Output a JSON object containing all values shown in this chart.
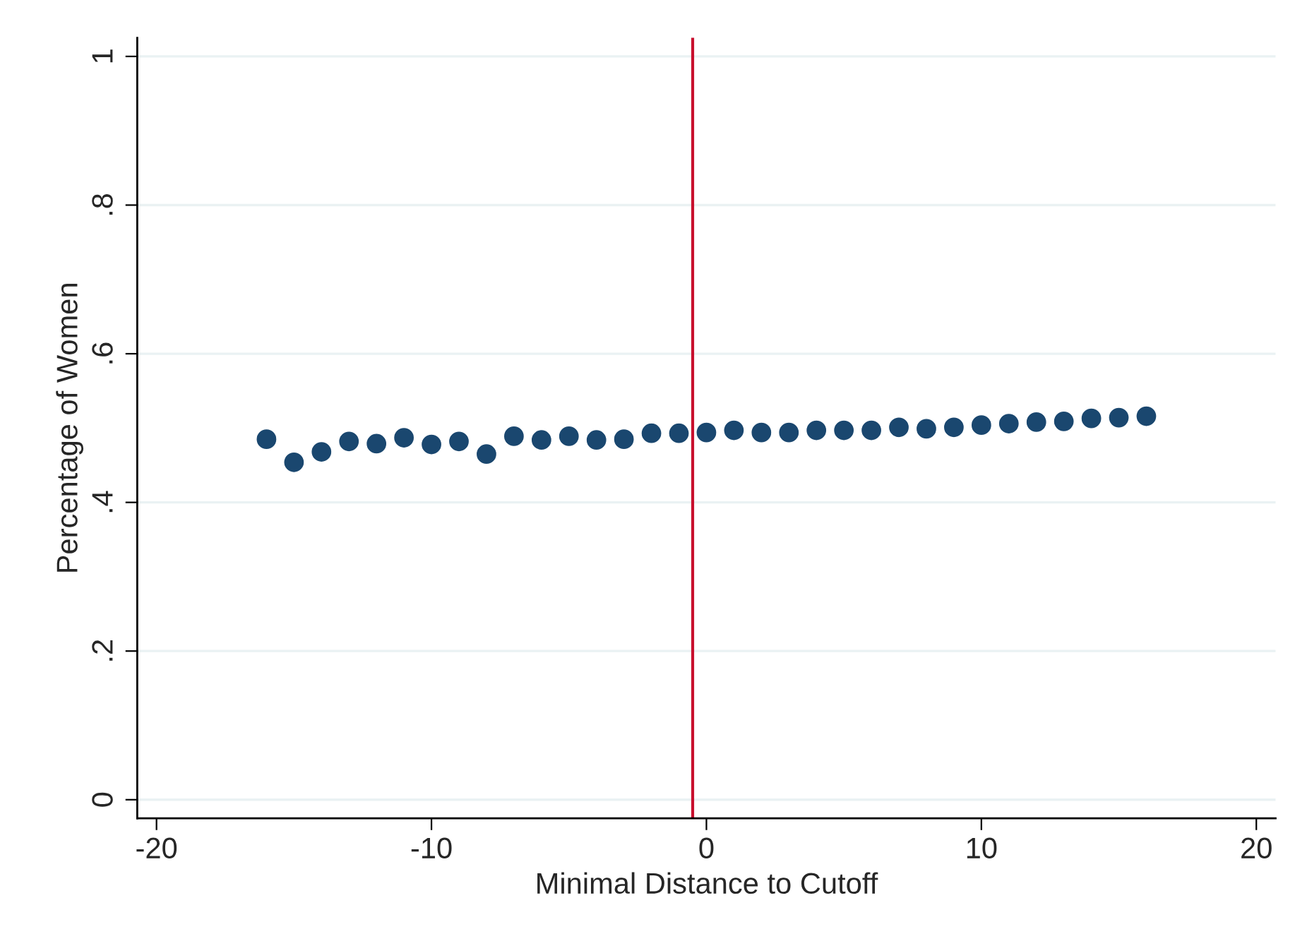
{
  "chart_data": {
    "type": "scatter",
    "xlabel": "Minimal Distance to Cutoff",
    "ylabel": "Percentage of Women",
    "x": [
      -16,
      -15,
      -14,
      -13,
      -12,
      -11,
      -10,
      -9,
      -8,
      -7,
      -6,
      -5,
      -4,
      -3,
      -2,
      -1,
      0,
      1,
      2,
      3,
      4,
      5,
      6,
      7,
      8,
      9,
      10,
      11,
      12,
      13,
      14,
      15,
      16
    ],
    "series": [
      {
        "color": "#1a476f",
        "values": [
          0.485,
          0.454,
          0.468,
          0.482,
          0.479,
          0.487,
          0.478,
          0.482,
          0.465,
          0.489,
          0.484,
          0.489,
          0.484,
          0.485,
          0.493,
          0.493,
          0.494,
          0.497,
          0.494,
          0.494,
          0.497,
          0.497,
          0.497,
          0.501,
          0.499,
          0.501,
          0.504,
          0.506,
          0.508,
          0.509,
          0.513,
          0.514,
          0.516
        ]
      }
    ],
    "xlim": [
      -20.7,
      20.7
    ],
    "ylim": [
      -0.025,
      1.025
    ],
    "xticks": [
      -20,
      -10,
      0,
      10,
      20
    ],
    "yticks": [
      {
        "value": 0,
        "label": "0"
      },
      {
        "value": 0.2,
        "label": ".2"
      },
      {
        "value": 0.4,
        "label": ".4"
      },
      {
        "value": 0.6,
        "label": ".6"
      },
      {
        "value": 0.8,
        "label": ".8"
      },
      {
        "value": 1,
        "label": "1"
      }
    ],
    "grid": "y",
    "marker": "circle",
    "legend": false,
    "ref_lines": [
      {
        "axis": "x",
        "value": -0.5,
        "color": "#c8102e"
      }
    ]
  }
}
